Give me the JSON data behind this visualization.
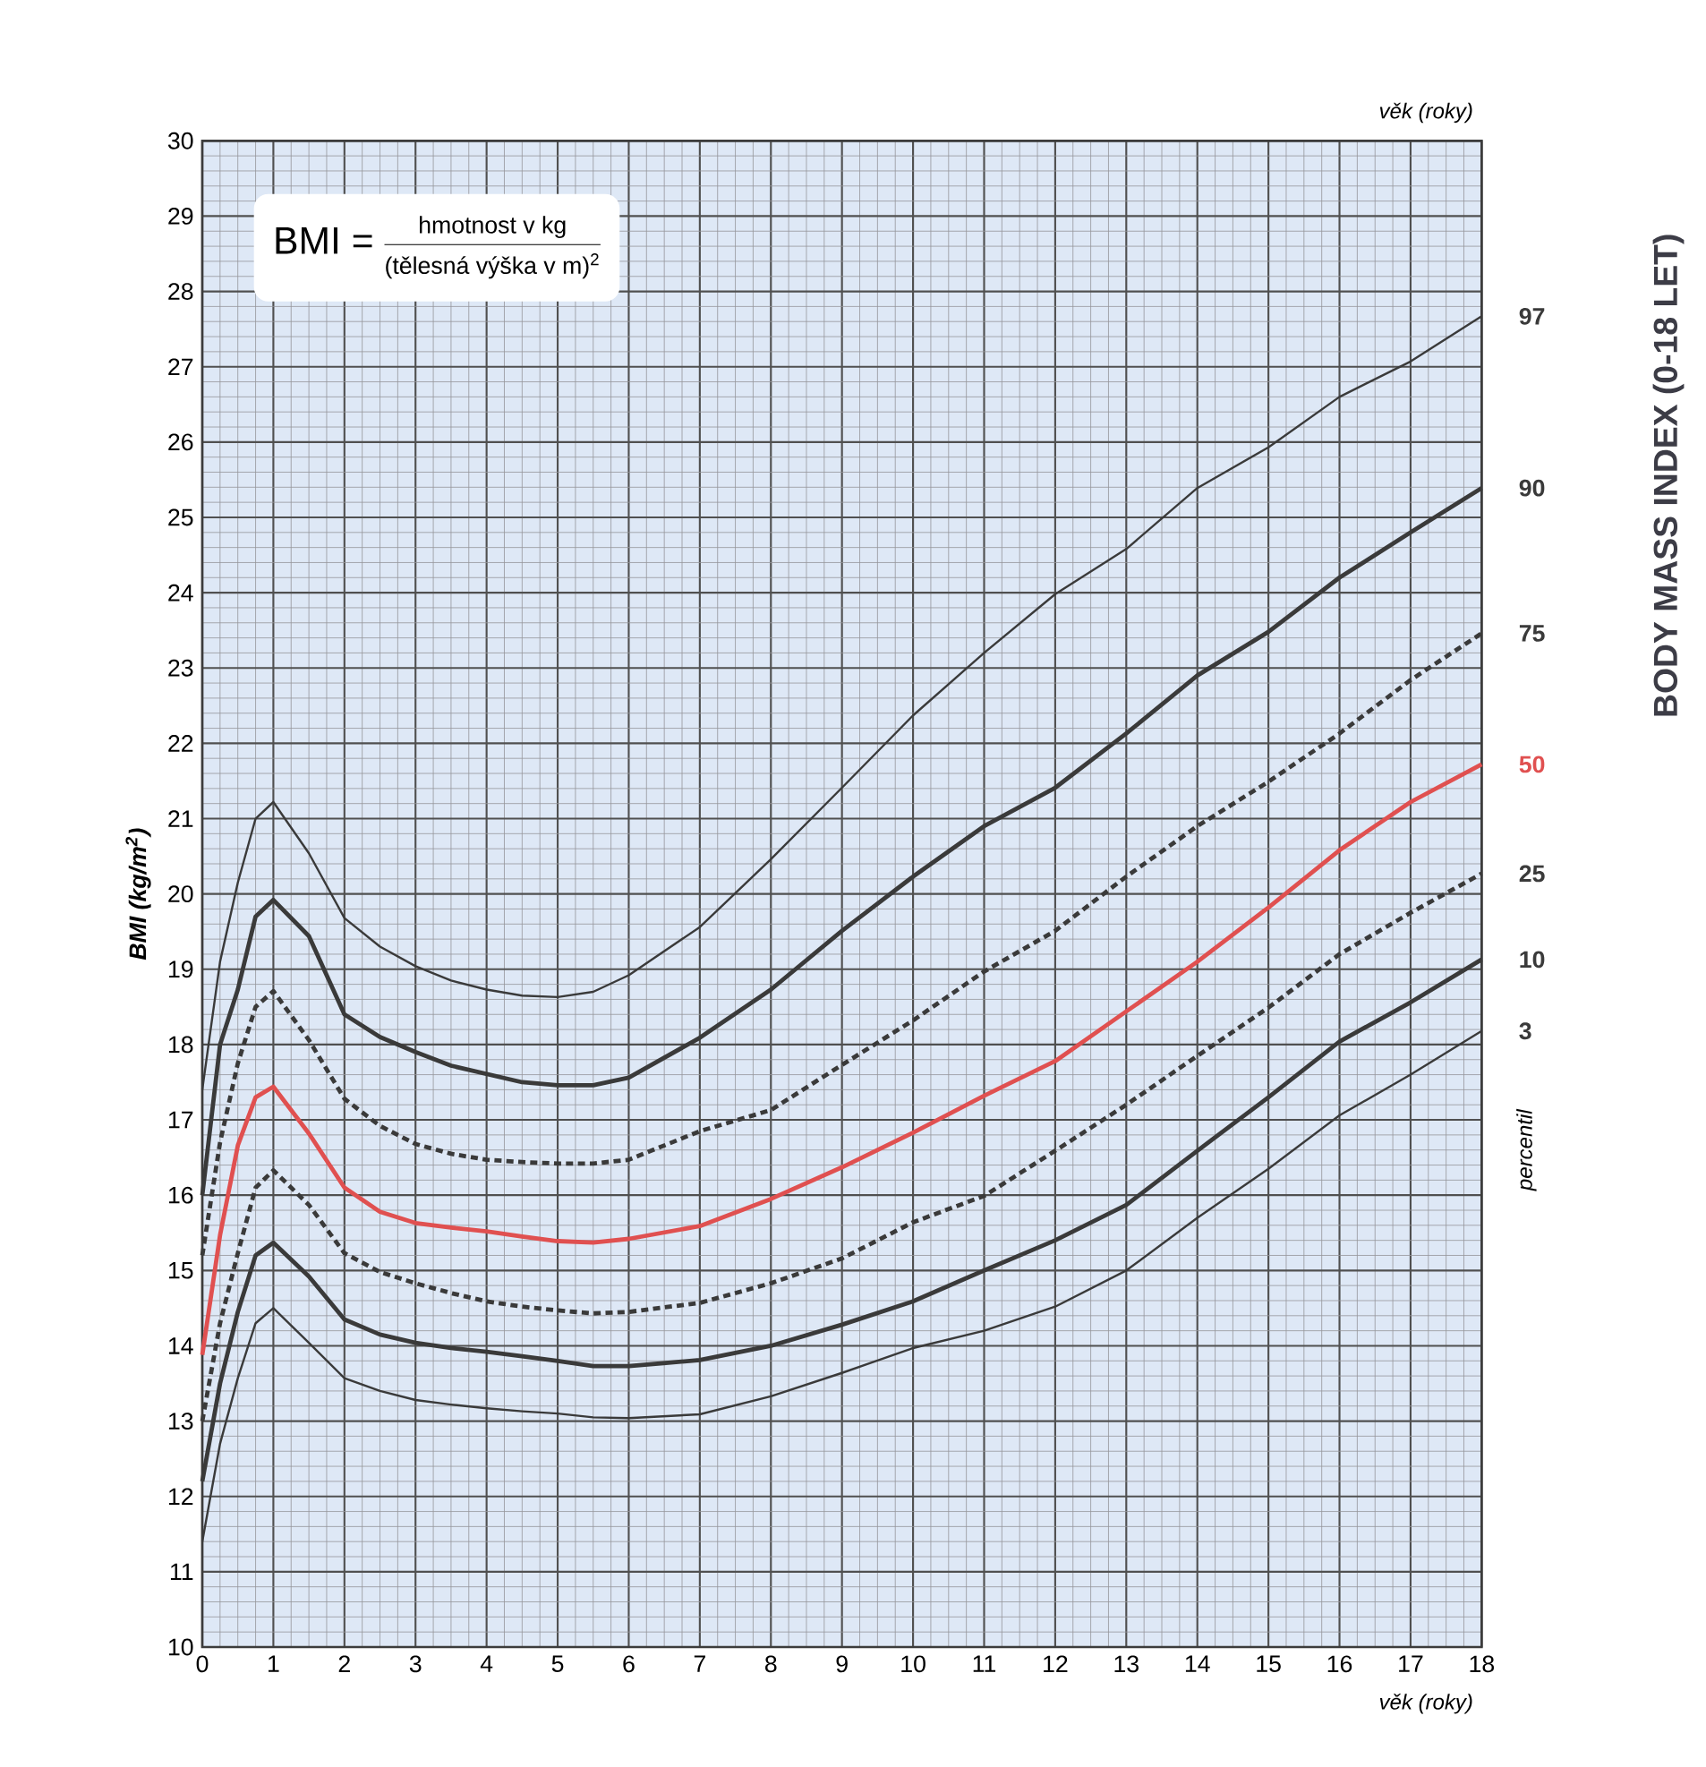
{
  "chart_data": {
    "type": "line",
    "title": "BODY MASS INDEX (0-18 LET)",
    "xlabel": "věk (roky)",
    "x2label": "věk (roky)",
    "ylabel": "BMI (kg/m$^{2}$)",
    "annotations": [
      "BMI =",
      "hmotnost v kg",
      "(tělesná výška v m)$^{2}$",
      "percentil"
    ],
    "x": [
      0,
      0.25,
      0.5,
      0.75,
      1,
      1.5,
      2,
      2.5,
      3,
      3.5,
      4,
      4.5,
      5,
      5.5,
      6,
      7,
      8,
      9,
      10,
      11,
      12,
      13,
      14,
      15,
      16,
      17,
      18
    ],
    "series": [
      {
        "name": "97",
        "color": "#3a3a3a",
        "line_style": "solid",
        "values": [
          17.4,
          19.1,
          20.15,
          21.0,
          21.22,
          20.54,
          19.68,
          19.3,
          19.04,
          18.85,
          18.73,
          18.65,
          18.63,
          18.7,
          18.92,
          19.56,
          20.46,
          21.41,
          22.37,
          23.2,
          23.98,
          24.58,
          25.39,
          25.93,
          26.6,
          27.07,
          27.67
        ]
      },
      {
        "name": "90",
        "color": "#3a3a3a",
        "line_style": "solid",
        "values": [
          16.0,
          18.0,
          18.73,
          19.7,
          19.92,
          19.44,
          18.4,
          18.1,
          17.9,
          17.72,
          17.61,
          17.5,
          17.46,
          17.46,
          17.56,
          18.09,
          18.73,
          19.51,
          20.23,
          20.9,
          21.41,
          22.13,
          22.9,
          23.48,
          24.2,
          24.8,
          25.39
        ]
      },
      {
        "name": "75",
        "color": "#3a3a3a",
        "line_style": "dashed",
        "values": [
          15.2,
          16.7,
          17.75,
          18.5,
          18.71,
          18.06,
          17.28,
          16.92,
          16.68,
          16.55,
          16.47,
          16.44,
          16.42,
          16.42,
          16.47,
          16.85,
          17.13,
          17.73,
          18.32,
          18.97,
          19.51,
          20.23,
          20.9,
          21.49,
          22.13,
          22.84,
          23.46
        ]
      },
      {
        "name": "50",
        "color": "#e05050",
        "line_style": "solid",
        "values": [
          13.88,
          15.47,
          16.66,
          17.3,
          17.44,
          16.82,
          16.1,
          15.78,
          15.63,
          15.57,
          15.52,
          15.45,
          15.39,
          15.37,
          15.42,
          15.59,
          15.95,
          16.37,
          16.83,
          17.32,
          17.78,
          18.44,
          19.1,
          19.82,
          20.58,
          21.22,
          21.72
        ]
      },
      {
        "name": "25",
        "color": "#3a3a3a",
        "line_style": "dashed",
        "values": [
          13.0,
          14.3,
          15.23,
          16.1,
          16.33,
          15.87,
          15.23,
          14.98,
          14.83,
          14.7,
          14.59,
          14.52,
          14.47,
          14.43,
          14.45,
          14.57,
          14.83,
          15.16,
          15.64,
          15.99,
          16.59,
          17.2,
          17.85,
          18.49,
          19.2,
          19.75,
          20.27
        ]
      },
      {
        "name": "10",
        "color": "#3a3a3a",
        "line_style": "solid",
        "values": [
          12.2,
          13.5,
          14.45,
          15.2,
          15.37,
          14.92,
          14.35,
          14.15,
          14.04,
          13.97,
          13.92,
          13.86,
          13.8,
          13.73,
          13.73,
          13.81,
          14.0,
          14.28,
          14.59,
          15.0,
          15.4,
          15.87,
          16.59,
          17.3,
          18.04,
          18.56,
          19.13
        ]
      },
      {
        "name": "3",
        "color": "#3a3a3a",
        "line_style": "solid",
        "values": [
          11.4,
          12.7,
          13.57,
          14.3,
          14.5,
          14.04,
          13.57,
          13.4,
          13.28,
          13.22,
          13.17,
          13.13,
          13.1,
          13.05,
          13.04,
          13.09,
          13.33,
          13.64,
          13.97,
          14.2,
          14.52,
          15.0,
          15.7,
          16.35,
          17.06,
          17.6,
          18.18
        ]
      }
    ],
    "xlim": [
      0,
      18
    ],
    "ylim": [
      10,
      30
    ],
    "xticks": [
      0,
      1,
      2,
      3,
      4,
      5,
      6,
      7,
      8,
      9,
      10,
      11,
      12,
      13,
      14,
      15,
      16,
      17,
      18
    ],
    "yticks": [
      10,
      11,
      12,
      13,
      14,
      15,
      16,
      17,
      18,
      19,
      20,
      21,
      22,
      23,
      24,
      25,
      26,
      27,
      28,
      29,
      30
    ],
    "grid": true
  }
}
